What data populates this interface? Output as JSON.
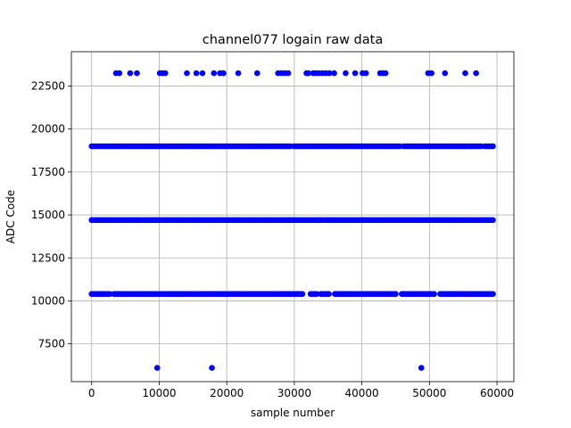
{
  "chart_data": {
    "type": "scatter",
    "title": "channel077 logain raw data",
    "xlabel": "sample number",
    "ylabel": "ADC Code",
    "xlim": [
      -3000,
      62500
    ],
    "ylim": [
      5300,
      24500
    ],
    "xticks": [
      0,
      10000,
      20000,
      30000,
      40000,
      50000,
      60000
    ],
    "yticks": [
      7500,
      10000,
      12500,
      15000,
      17500,
      20000,
      22500
    ],
    "grid": true,
    "marker_color": "#0000ff",
    "levels": [
      {
        "y": 23250,
        "x": [
          3600,
          4100,
          5700,
          6700,
          10100,
          10500,
          10900,
          14100,
          15500,
          16400,
          18100,
          19000,
          19500,
          21700,
          24500,
          27600,
          28100,
          28600,
          29100,
          31800,
          32100,
          32800,
          33200,
          33700,
          34200,
          34700,
          35200,
          35900,
          37600,
          39000,
          40100,
          40600,
          42700,
          43100,
          43500,
          49800,
          50300,
          52300,
          55300,
          56900
        ]
      },
      {
        "y": 19000,
        "x_range": [
          0,
          59500
        ],
        "gaps": [
          [
            29500,
            29700
          ],
          [
            37300,
            37400
          ],
          [
            45800,
            45900
          ],
          [
            57900,
            58100
          ]
        ]
      },
      {
        "y": 14700,
        "x_range": [
          0,
          59500
        ],
        "gaps": []
      },
      {
        "y": 10400,
        "x_range": [
          0,
          59500
        ],
        "gaps": [
          [
            2800,
            3200
          ],
          [
            31400,
            32200
          ],
          [
            33600,
            33800
          ],
          [
            35300,
            35700
          ],
          [
            45300,
            45700
          ],
          [
            50900,
            51300
          ]
        ]
      },
      {
        "y": 6100,
        "x": [
          9700,
          17800,
          48800
        ]
      }
    ]
  }
}
